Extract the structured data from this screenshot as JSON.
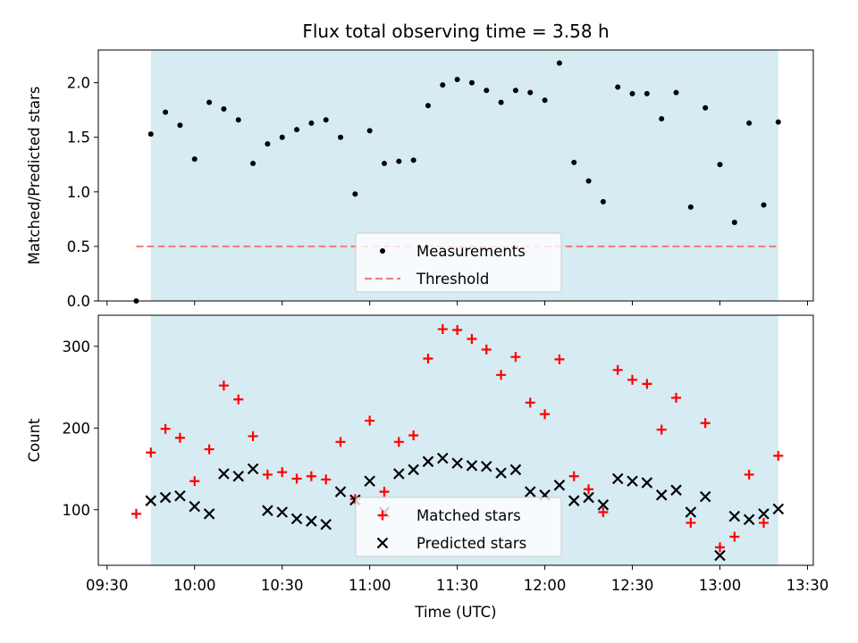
{
  "chart_data": [
    {
      "type": "scatter",
      "title": "Flux total observing time = 3.58 h",
      "ylabel": "Matched/Predicted stars",
      "xlabel": "",
      "xlim": [
        "09:27",
        "13:32"
      ],
      "ylim": [
        0,
        2.3
      ],
      "yticks": [
        "0.0",
        "0.5",
        "1.0",
        "1.5",
        "2.0"
      ],
      "observing_window": [
        "09:45",
        "13:20"
      ],
      "shade_color": "#add8e6",
      "legend": {
        "placement": "lower center",
        "entries": [
          "Measurements",
          "Threshold"
        ]
      },
      "series": [
        {
          "name": "Measurements",
          "marker": "dot",
          "color": "#000000",
          "points": [
            [
              "09:40",
              0.0
            ],
            [
              "09:45",
              1.53
            ],
            [
              "09:50",
              1.73
            ],
            [
              "09:55",
              1.61
            ],
            [
              "10:00",
              1.3
            ],
            [
              "10:05",
              1.82
            ],
            [
              "10:10",
              1.76
            ],
            [
              "10:15",
              1.66
            ],
            [
              "10:20",
              1.26
            ],
            [
              "10:25",
              1.44
            ],
            [
              "10:30",
              1.5
            ],
            [
              "10:35",
              1.57
            ],
            [
              "10:40",
              1.63
            ],
            [
              "10:45",
              1.66
            ],
            [
              "10:50",
              1.5
            ],
            [
              "10:55",
              0.98
            ],
            [
              "11:00",
              1.56
            ],
            [
              "11:05",
              1.26
            ],
            [
              "11:10",
              1.28
            ],
            [
              "11:15",
              1.29
            ],
            [
              "11:20",
              1.79
            ],
            [
              "11:25",
              1.98
            ],
            [
              "11:30",
              2.03
            ],
            [
              "11:35",
              2.0
            ],
            [
              "11:40",
              1.93
            ],
            [
              "11:45",
              1.82
            ],
            [
              "11:50",
              1.93
            ],
            [
              "11:55",
              1.91
            ],
            [
              "12:00",
              1.84
            ],
            [
              "12:05",
              2.18
            ],
            [
              "12:10",
              1.27
            ],
            [
              "12:15",
              1.1
            ],
            [
              "12:20",
              0.91
            ],
            [
              "12:25",
              1.96
            ],
            [
              "12:30",
              1.9
            ],
            [
              "12:35",
              1.9
            ],
            [
              "12:40",
              1.67
            ],
            [
              "12:45",
              1.91
            ],
            [
              "12:50",
              0.86
            ],
            [
              "12:55",
              1.77
            ],
            [
              "13:00",
              1.25
            ],
            [
              "13:05",
              0.72
            ],
            [
              "13:10",
              1.63
            ],
            [
              "13:15",
              0.88
            ],
            [
              "13:20",
              1.64
            ]
          ]
        },
        {
          "name": "Threshold",
          "line": "dashed",
          "color": "#f08080",
          "points": [
            [
              "09:40",
              0.5
            ],
            [
              "13:20",
              0.5
            ]
          ]
        }
      ]
    },
    {
      "type": "scatter",
      "title": "",
      "ylabel": "Count",
      "xlabel": "Time (UTC)",
      "xlim": [
        "09:27",
        "13:32"
      ],
      "ylim": [
        32,
        338
      ],
      "yticks": [
        "100",
        "200",
        "300"
      ],
      "xticks": [
        "09:30",
        "10:00",
        "10:30",
        "11:00",
        "11:30",
        "12:00",
        "12:30",
        "13:00",
        "13:30"
      ],
      "observing_window": [
        "09:45",
        "13:20"
      ],
      "shade_color": "#add8e6",
      "legend": {
        "placement": "lower center",
        "entries": [
          "Matched stars",
          "Predicted stars"
        ]
      },
      "series": [
        {
          "name": "Matched stars",
          "marker": "plus",
          "color": "#ff0000",
          "points": [
            [
              "09:40",
              95
            ],
            [
              "09:45",
              170
            ],
            [
              "09:50",
              199
            ],
            [
              "09:55",
              188
            ],
            [
              "10:00",
              135
            ],
            [
              "10:05",
              174
            ],
            [
              "10:10",
              252
            ],
            [
              "10:15",
              235
            ],
            [
              "10:20",
              190
            ],
            [
              "10:25",
              143
            ],
            [
              "10:30",
              146
            ],
            [
              "10:35",
              138
            ],
            [
              "10:40",
              141
            ],
            [
              "10:45",
              137
            ],
            [
              "10:50",
              183
            ],
            [
              "10:55",
              113
            ],
            [
              "11:00",
              209
            ],
            [
              "11:05",
              122
            ],
            [
              "11:10",
              183
            ],
            [
              "11:15",
              191
            ],
            [
              "11:20",
              285
            ],
            [
              "11:25",
              321
            ],
            [
              "11:30",
              320
            ],
            [
              "11:35",
              309
            ],
            [
              "11:40",
              296
            ],
            [
              "11:45",
              265
            ],
            [
              "11:50",
              287
            ],
            [
              "11:55",
              231
            ],
            [
              "12:00",
              217
            ],
            [
              "12:05",
              284
            ],
            [
              "12:10",
              141
            ],
            [
              "12:15",
              125
            ],
            [
              "12:20",
              97
            ],
            [
              "12:25",
              271
            ],
            [
              "12:30",
              259
            ],
            [
              "12:35",
              254
            ],
            [
              "12:40",
              198
            ],
            [
              "12:45",
              237
            ],
            [
              "12:50",
              84
            ],
            [
              "12:55",
              206
            ],
            [
              "13:00",
              54
            ],
            [
              "13:05",
              67
            ],
            [
              "13:10",
              143
            ],
            [
              "13:15",
              84
            ],
            [
              "13:20",
              166
            ]
          ]
        },
        {
          "name": "Predicted stars",
          "marker": "x",
          "color": "#000000",
          "points": [
            [
              "09:45",
              111
            ],
            [
              "09:50",
              115
            ],
            [
              "09:55",
              117
            ],
            [
              "10:00",
              104
            ],
            [
              "10:05",
              95
            ],
            [
              "10:10",
              144
            ],
            [
              "10:15",
              141
            ],
            [
              "10:20",
              150
            ],
            [
              "10:25",
              99
            ],
            [
              "10:30",
              97
            ],
            [
              "10:35",
              89
            ],
            [
              "10:40",
              86
            ],
            [
              "10:45",
              82
            ],
            [
              "10:50",
              122
            ],
            [
              "10:55",
              112
            ],
            [
              "11:00",
              135
            ],
            [
              "11:05",
              97
            ],
            [
              "11:10",
              144
            ],
            [
              "11:15",
              149
            ],
            [
              "11:20",
              159
            ],
            [
              "11:25",
              163
            ],
            [
              "11:30",
              157
            ],
            [
              "11:35",
              154
            ],
            [
              "11:40",
              153
            ],
            [
              "11:45",
              145
            ],
            [
              "11:50",
              149
            ],
            [
              "11:55",
              122
            ],
            [
              "12:00",
              118
            ],
            [
              "12:05",
              130
            ],
            [
              "12:10",
              111
            ],
            [
              "12:15",
              115
            ],
            [
              "12:20",
              106
            ],
            [
              "12:25",
              138
            ],
            [
              "12:30",
              135
            ],
            [
              "12:35",
              133
            ],
            [
              "12:40",
              118
            ],
            [
              "12:45",
              124
            ],
            [
              "12:50",
              97
            ],
            [
              "12:55",
              116
            ],
            [
              "13:00",
              44
            ],
            [
              "13:05",
              92
            ],
            [
              "13:10",
              88
            ],
            [
              "13:15",
              95
            ],
            [
              "13:20",
              101
            ]
          ]
        }
      ]
    }
  ]
}
